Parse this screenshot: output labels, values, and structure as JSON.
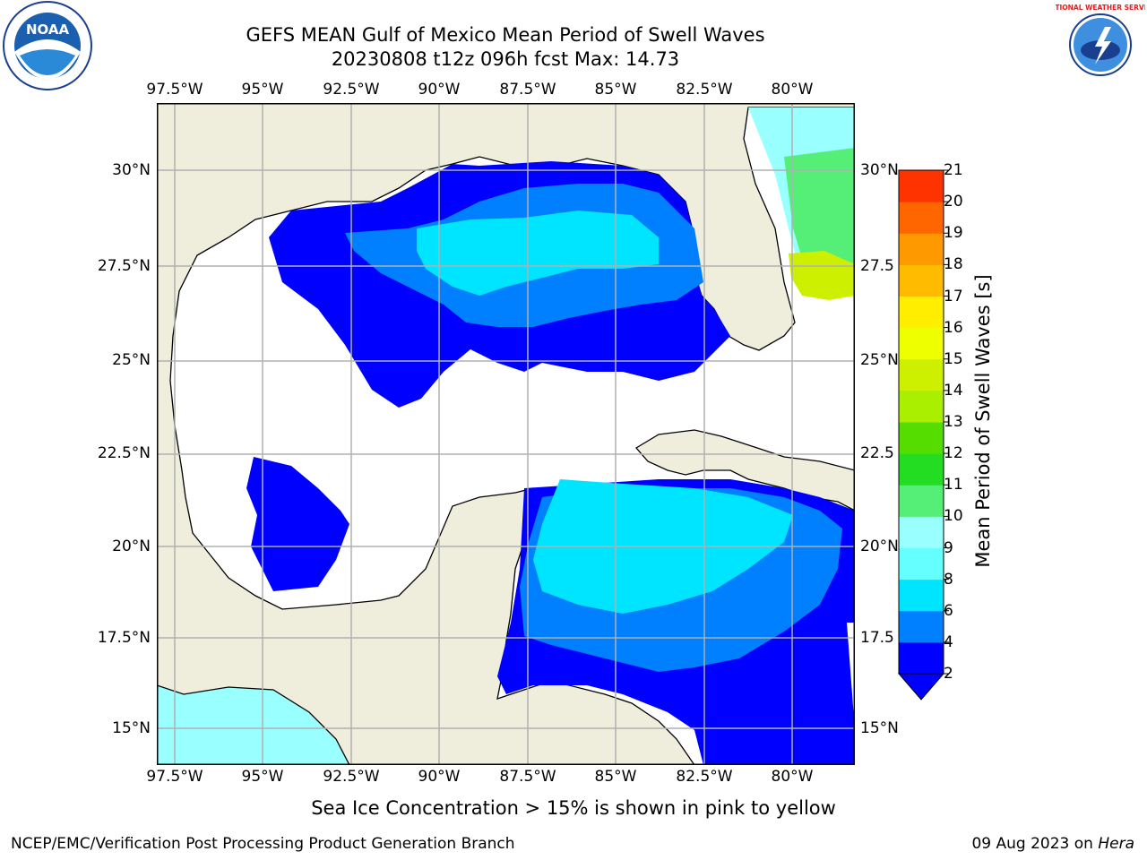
{
  "header": {
    "title_line1": "GEFS MEAN Gulf of Mexico Mean Period of Swell Waves",
    "title_line2": "20230808 t12z 096h fcst   Max: 14.73"
  },
  "axes": {
    "lon_labels": [
      "97.5°W",
      "95°W",
      "92.5°W",
      "90°W",
      "87.5°W",
      "85°W",
      "82.5°W",
      "80°W"
    ],
    "lat_labels_left": [
      "30°N",
      "27.5°N",
      "25°N",
      "22.5°N",
      "20°N",
      "17.5°N",
      "15°N"
    ],
    "lat_labels_right": [
      "30°N",
      "27.5",
      "25°N",
      "22.5",
      "20°N",
      "17.5",
      "15°N"
    ]
  },
  "colorbar": {
    "title": "Mean Period of Swell Waves [s]",
    "ticks": [
      "2",
      "4",
      "6",
      "8",
      "9",
      "10",
      "11",
      "12",
      "13",
      "14",
      "15",
      "16",
      "17",
      "18",
      "19",
      "20",
      "21"
    ],
    "colors": [
      "#0000ff",
      "#0080ff",
      "#00e5ff",
      "#66ffff",
      "#99ffff",
      "#55ee77",
      "#22dd22",
      "#55dd00",
      "#aaee00",
      "#ccf000",
      "#eeff00",
      "#ffee00",
      "#ffbb00",
      "#ff9900",
      "#ff6600",
      "#ff3300",
      "#ff0000"
    ]
  },
  "map": {
    "land_color": "#efeedd",
    "ocean_color": "#ffffff"
  },
  "note": "Sea Ice Concentration > 15% is shown in pink to yellow",
  "footer": {
    "left": "NCEP/EMC/Verification Post Processing Product Generation Branch",
    "right_prefix": "09 Aug 2023 on ",
    "right_italic": "Hera"
  },
  "logos": {
    "noaa_text": "NOAA",
    "nws_ring_text": "NATIONAL WEATHER SERVICE"
  }
}
